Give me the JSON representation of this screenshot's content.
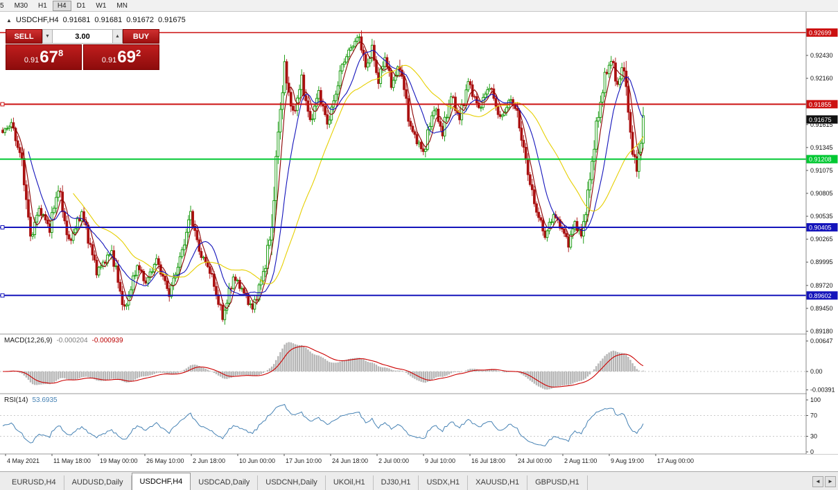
{
  "toolbar": {
    "timeframes": [
      "5",
      "M30",
      "H1",
      "H4",
      "D1",
      "W1",
      "MN"
    ],
    "active": "H4"
  },
  "chart_header": {
    "marker": "▲",
    "symbol": "USDCHF,H4",
    "open": "0.91681",
    "high": "0.91681",
    "low": "0.91672",
    "close": "0.91675"
  },
  "trade_panel": {
    "sell_label": "SELL",
    "buy_label": "BUY",
    "lot_value": "3.00",
    "lot_down_icon": "▼",
    "lot_up_icon": "▲",
    "sell_price": {
      "prefix": "0.91",
      "big": "67",
      "sup": "8"
    },
    "buy_price": {
      "prefix": "0.91",
      "big": "69",
      "sup": "2"
    }
  },
  "indicator_labels": {
    "macd": {
      "name": "MACD(12,26,9)",
      "main_value": "-0.000204",
      "signal_value": "-0.000939"
    },
    "rsi": {
      "name": "RSI(14)",
      "value": "53.6935"
    }
  },
  "bottom_tabs": {
    "items": [
      "EURUSD,H4",
      "AUDUSD,Daily",
      "USDCHF,H4",
      "USDCAD,Daily",
      "USDCNH,Daily",
      "UKOil,H1",
      "DJ30,H1",
      "USDX,H1",
      "XAUUSD,H1",
      "GBPUSD,H1"
    ],
    "active": "USDCHF,H4",
    "scroll_left": "◄",
    "scroll_right": "►"
  },
  "chart_data": {
    "type": "candlestick",
    "symbol": "USDCHF",
    "timeframe": "H4",
    "title": "USDCHF,H4",
    "price_range_visible": [
      0.8918,
      0.92699
    ],
    "date_range": [
      "4 May 2021",
      "17 Aug 2021"
    ],
    "grid": false,
    "time_labels": [
      "4 May 2021",
      "11 May 18:00",
      "19 May 00:00",
      "26 May 10:00",
      "2 Jun 18:00",
      "10 Jun 00:00",
      "17 Jun 10:00",
      "24 Jun 18:00",
      "2 Jul 00:00",
      "9 Jul 10:00",
      "16 Jul 18:00",
      "24 Jul 00:00",
      "2 Aug 11:00",
      "9 Aug 19:00",
      "17 Aug 00:00"
    ],
    "price_ticks": [
      {
        "label": "0.92430",
        "value": 0.9243
      },
      {
        "label": "0.92160",
        "value": 0.9216
      },
      {
        "label": "0.91615",
        "value": 0.91615
      },
      {
        "label": "0.91345",
        "value": 0.91345
      },
      {
        "label": "0.91075",
        "value": 0.91075
      },
      {
        "label": "0.90805",
        "value": 0.90805
      },
      {
        "label": "0.90535",
        "value": 0.90535
      },
      {
        "label": "0.90265",
        "value": 0.90265
      },
      {
        "label": "0.89995",
        "value": 0.89995
      },
      {
        "label": "0.89720",
        "value": 0.8972
      },
      {
        "label": "0.89450",
        "value": 0.8945
      },
      {
        "label": "0.89180",
        "value": 0.8918
      }
    ],
    "level_lines": [
      {
        "price": 0.92699,
        "label": "0.92699",
        "color": "#cc1111",
        "width": 1.4,
        "handle": false
      },
      {
        "price": 0.91855,
        "label": "0.91855",
        "color": "#cc1111",
        "width": 2,
        "handle": true
      },
      {
        "price": 0.91208,
        "label": "0.91208",
        "color": "#00c832",
        "width": 2,
        "handle": false
      },
      {
        "price": 0.90405,
        "label": "0.90405",
        "color": "#1414bb",
        "width": 2,
        "handle": true
      },
      {
        "price": 0.89602,
        "label": "0.89602",
        "color": "#1414bb",
        "width": 2,
        "handle": true
      }
    ],
    "current_price": {
      "value": 0.91675,
      "label": "0.91675",
      "tag_color": "#111111"
    },
    "candle_count": 301,
    "close_waypoints": [
      [
        0,
        0.9152
      ],
      [
        4,
        0.9163
      ],
      [
        9,
        0.9118
      ],
      [
        13,
        0.9028
      ],
      [
        17,
        0.9062
      ],
      [
        22,
        0.904
      ],
      [
        26,
        0.9088
      ],
      [
        31,
        0.9022
      ],
      [
        37,
        0.9058
      ],
      [
        44,
        0.8988
      ],
      [
        51,
        0.9012
      ],
      [
        57,
        0.8942
      ],
      [
        63,
        0.8996
      ],
      [
        67,
        0.8975
      ],
      [
        72,
        0.9002
      ],
      [
        78,
        0.8962
      ],
      [
        84,
        0.9012
      ],
      [
        88,
        0.9058
      ],
      [
        92,
        0.9012
      ],
      [
        97,
        0.899
      ],
      [
        103,
        0.8934
      ],
      [
        108,
        0.8982
      ],
      [
        112,
        0.8968
      ],
      [
        117,
        0.8944
      ],
      [
        122,
        0.8986
      ],
      [
        126,
        0.904
      ],
      [
        129,
        0.9155
      ],
      [
        132,
        0.9228
      ],
      [
        136,
        0.9172
      ],
      [
        140,
        0.9214
      ],
      [
        144,
        0.9164
      ],
      [
        148,
        0.92
      ],
      [
        152,
        0.9162
      ],
      [
        155,
        0.9188
      ],
      [
        159,
        0.9232
      ],
      [
        163,
        0.9252
      ],
      [
        167,
        0.9266
      ],
      [
        170,
        0.9228
      ],
      [
        173,
        0.925
      ],
      [
        176,
        0.9212
      ],
      [
        179,
        0.9242
      ],
      [
        182,
        0.9208
      ],
      [
        186,
        0.9232
      ],
      [
        191,
        0.9158
      ],
      [
        197,
        0.9128
      ],
      [
        202,
        0.9182
      ],
      [
        206,
        0.9152
      ],
      [
        210,
        0.9196
      ],
      [
        214,
        0.9168
      ],
      [
        218,
        0.9212
      ],
      [
        223,
        0.918
      ],
      [
        228,
        0.9208
      ],
      [
        233,
        0.9168
      ],
      [
        238,
        0.9192
      ],
      [
        241,
        0.9174
      ],
      [
        245,
        0.9118
      ],
      [
        249,
        0.9068
      ],
      [
        254,
        0.903
      ],
      [
        258,
        0.9056
      ],
      [
        262,
        0.9038
      ],
      [
        265,
        0.9022
      ],
      [
        268,
        0.9046
      ],
      [
        271,
        0.903
      ],
      [
        274,
        0.9078
      ],
      [
        278,
        0.9158
      ],
      [
        282,
        0.9218
      ],
      [
        285,
        0.9238
      ],
      [
        288,
        0.9208
      ],
      [
        291,
        0.9232
      ],
      [
        294,
        0.9148
      ],
      [
        297,
        0.9106
      ],
      [
        300,
        0.9167
      ]
    ],
    "colors": {
      "bull": "#0a9400",
      "bear": "#aa1111",
      "ma_fast": "#8b0000",
      "ma_mid": "#1414bb",
      "ma_slow": "#e6cf00",
      "macd_hist": "#b6b6b6",
      "macd_signal": "#cc0000",
      "rsi": "#4682b4"
    },
    "moving_averages": [
      {
        "period": 5,
        "color_key": "ma_fast"
      },
      {
        "period": 13,
        "color_key": "ma_mid"
      },
      {
        "period": 34,
        "color_key": "ma_slow"
      }
    ],
    "macd": {
      "params": [
        12,
        26,
        9
      ],
      "main_value": -0.000204,
      "signal_value": -0.000939,
      "axis": [
        {
          "label": "0.00647",
          "value": 0.00647
        },
        {
          "label": "0.00",
          "value": 0
        },
        {
          "label": "-0.00391",
          "value": -0.00391
        }
      ]
    },
    "rsi": {
      "period": 14,
      "value": 53.6935,
      "levels": [
        30,
        70
      ],
      "axis": [
        {
          "label": "100",
          "value": 100
        },
        {
          "label": "70",
          "value": 70
        },
        {
          "label": "30",
          "value": 30
        },
        {
          "label": "0",
          "value": 0
        }
      ]
    }
  }
}
